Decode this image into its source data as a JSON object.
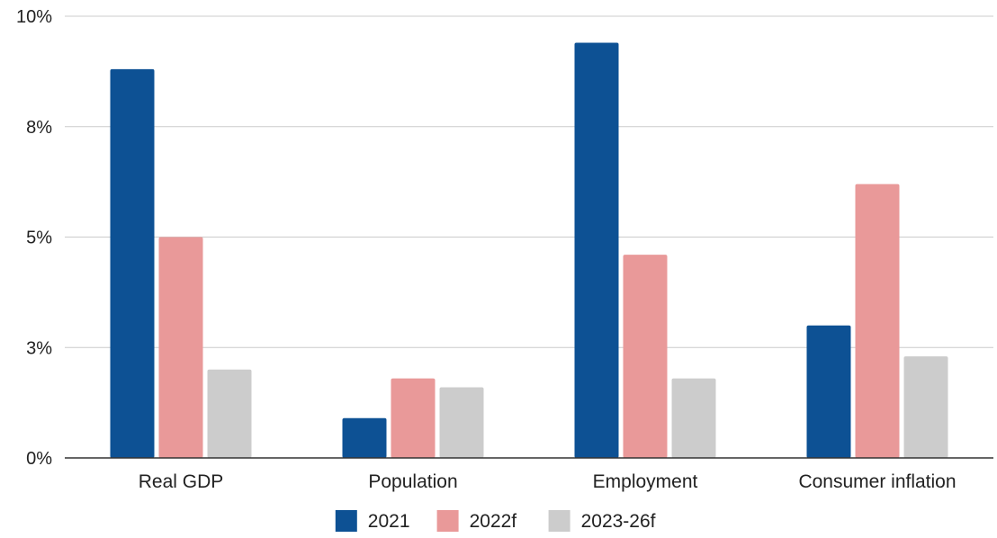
{
  "chart_data": {
    "type": "bar",
    "title": "",
    "xlabel": "",
    "ylabel": "",
    "ylim": [
      0,
      10
    ],
    "yticks": [
      {
        "value": 0,
        "label": "0%"
      },
      {
        "value": 2.5,
        "label": "3%"
      },
      {
        "value": 5,
        "label": "5%"
      },
      {
        "value": 7.5,
        "label": "8%"
      },
      {
        "value": 10,
        "label": "10%"
      }
    ],
    "grid": true,
    "legend_position": "bottom",
    "categories": [
      "Real GDP",
      "Population",
      "Employment",
      "Consumer inflation"
    ],
    "series": [
      {
        "name": "2021",
        "color": "#0d5194",
        "values": [
          8.8,
          0.9,
          9.4,
          3.0
        ]
      },
      {
        "name": "2022f",
        "color": "#e99999",
        "values": [
          5.0,
          1.8,
          4.6,
          6.2
        ]
      },
      {
        "name": "2023-26f",
        "color": "#cccccc",
        "values": [
          2.0,
          1.6,
          1.8,
          2.3
        ]
      }
    ]
  }
}
